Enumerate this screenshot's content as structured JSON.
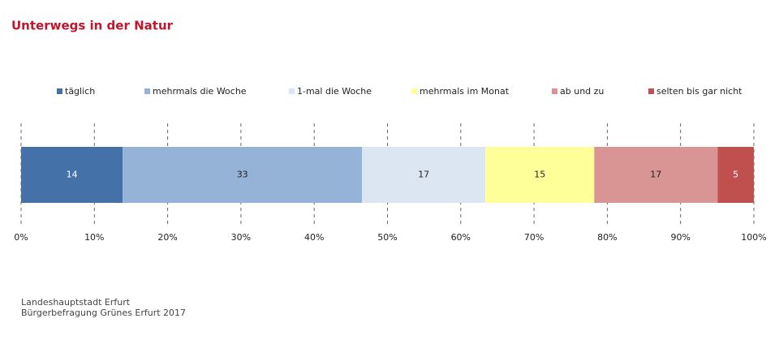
{
  "chart_data": {
    "type": "bar",
    "orientation": "horizontal",
    "stack": "percent",
    "title": "Unterwegs in der Natur",
    "categories": [
      null
    ],
    "series": [
      {
        "name": "täglich",
        "color": "#4472a8",
        "values": [
          14
        ]
      },
      {
        "name": "mehrmals die Woche",
        "color": "#95b3d7",
        "values": [
          33
        ]
      },
      {
        "name": "1-mal die Woche",
        "color": "#dce6f2",
        "values": [
          17
        ]
      },
      {
        "name": "mehrmals im Monat",
        "color": "#ffff99",
        "values": [
          15
        ]
      },
      {
        "name": "ab und zu",
        "color": "#d99594",
        "values": [
          17
        ]
      },
      {
        "name": "selten bis gar nicht",
        "color": "#c0504d",
        "values": [
          5
        ]
      }
    ],
    "xlim": [
      0,
      100
    ],
    "xticks": [
      {
        "value": 0,
        "label": "0%"
      },
      {
        "value": 10,
        "label": "10%"
      },
      {
        "value": 20,
        "label": "20%"
      },
      {
        "value": 30,
        "label": "30%"
      },
      {
        "value": 40,
        "label": "40%"
      },
      {
        "value": 50,
        "label": "50%"
      },
      {
        "value": 60,
        "label": "60%"
      },
      {
        "value": 70,
        "label": "70%"
      },
      {
        "value": 80,
        "label": "80%"
      },
      {
        "value": 90,
        "label": "90%"
      },
      {
        "value": 100,
        "label": "100%"
      }
    ],
    "grid": true,
    "legend": "top",
    "source": [
      "Landeshauptstadt Erfurt",
      "Bürgerbefragung Grünes Erfurt 2017"
    ]
  }
}
